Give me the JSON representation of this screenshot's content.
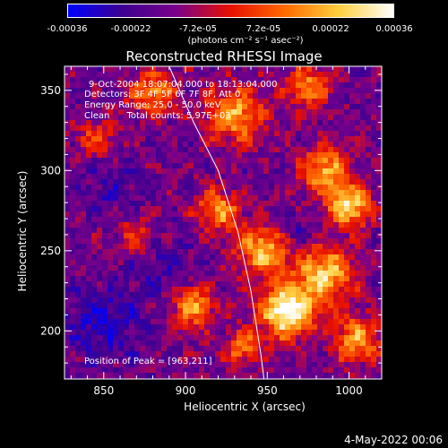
{
  "colorbar": {
    "ticks": [
      "-0.00036",
      "-0.00022",
      "-7.2e-05",
      "7.2e-05",
      "0.00022",
      "0.00036"
    ],
    "tick_values": [
      -0.00036,
      -0.00022,
      -7.2e-05,
      7.2e-05,
      0.00022,
      0.00036
    ],
    "unit_label": "(photons cm⁻² s⁻¹ asec⁻²)",
    "colors": [
      "#0000ff",
      "#3c0090",
      "#7a008a",
      "#e81000",
      "#ff6a00",
      "#ffd040",
      "#ffffff"
    ]
  },
  "chart_data": {
    "type": "heatmap",
    "title": "Reconstructed RHESSI Image",
    "xlabel": "Heliocentric X (arcsec)",
    "ylabel": "Heliocentric Y (arcsec)",
    "xlim": [
      826,
      1020
    ],
    "ylim": [
      170,
      365
    ],
    "x_ticks": [
      850,
      900,
      950,
      1000
    ],
    "y_ticks": [
      200,
      250,
      300,
      350
    ],
    "value_range": [
      -0.00036,
      0.00036
    ],
    "annotations": [
      "9-Oct-2004 18:07:04.000 to 18:13:04.000",
      "Detectors: 3F 4F 5F 6F 7F 8F, Att 0",
      "Energy Range: 25.0 - 50.0 keV",
      "Clean      Total counts: 5.97E+03"
    ],
    "peak_label": "Position of Peak = [963,211]",
    "peak": [
      963,
      211
    ],
    "limb_curve": [
      [
        890,
        365
      ],
      [
        905,
        330
      ],
      [
        920,
        300
      ],
      [
        932,
        262
      ],
      [
        940,
        225
      ],
      [
        946,
        186
      ],
      [
        948,
        170
      ]
    ],
    "bright_regions": [
      {
        "x": 962,
        "y": 212,
        "amp": 1.0,
        "s": 11
      },
      {
        "x": 985,
        "y": 235,
        "amp": 0.75,
        "s": 12
      },
      {
        "x": 948,
        "y": 250,
        "amp": 0.7,
        "s": 11
      },
      {
        "x": 1000,
        "y": 278,
        "amp": 0.8,
        "s": 9
      },
      {
        "x": 985,
        "y": 300,
        "amp": 0.65,
        "s": 10
      },
      {
        "x": 1005,
        "y": 195,
        "amp": 0.6,
        "s": 10
      },
      {
        "x": 920,
        "y": 275,
        "amp": 0.6,
        "s": 9
      },
      {
        "x": 930,
        "y": 335,
        "amp": 0.65,
        "s": 12
      },
      {
        "x": 975,
        "y": 352,
        "amp": 0.55,
        "s": 9
      },
      {
        "x": 880,
        "y": 348,
        "amp": 0.55,
        "s": 10
      },
      {
        "x": 905,
        "y": 215,
        "amp": 0.6,
        "s": 9
      },
      {
        "x": 870,
        "y": 258,
        "amp": 0.4,
        "s": 9
      },
      {
        "x": 935,
        "y": 190,
        "amp": 0.5,
        "s": 8
      },
      {
        "x": 845,
        "y": 320,
        "amp": 0.4,
        "s": 8
      }
    ],
    "dark_regions": [
      {
        "x": 850,
        "y": 205,
        "amp": 0.8,
        "s": 16
      },
      {
        "x": 880,
        "y": 245,
        "amp": 0.6,
        "s": 14
      },
      {
        "x": 855,
        "y": 290,
        "amp": 0.5,
        "s": 12
      },
      {
        "x": 965,
        "y": 260,
        "amp": 0.5,
        "s": 10
      }
    ]
  },
  "timestamp": "4-May-2022 00:06"
}
